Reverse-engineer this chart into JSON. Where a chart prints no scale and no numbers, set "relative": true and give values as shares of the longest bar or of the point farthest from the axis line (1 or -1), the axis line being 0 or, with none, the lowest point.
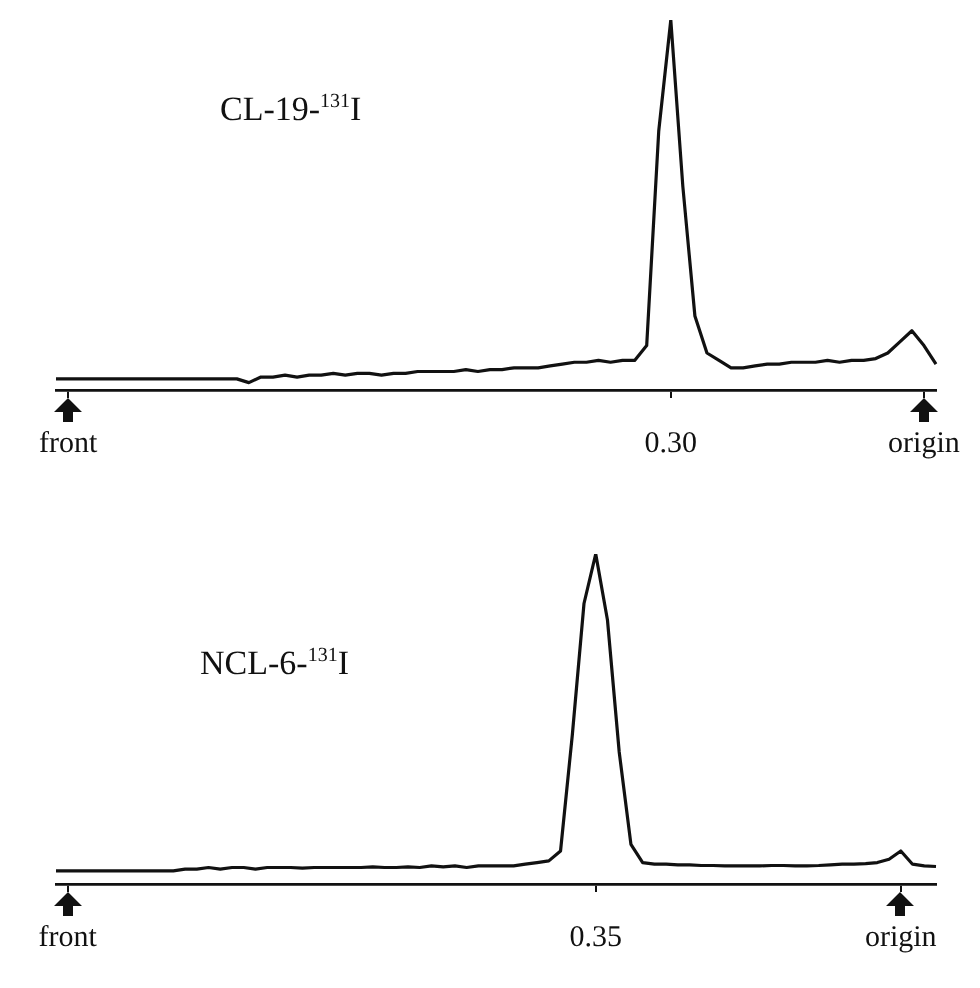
{
  "chart_data": [
    {
      "type": "line",
      "title": "CL-19-$^{131}$I",
      "relative": true,
      "grid": false,
      "legend": false,
      "marker": "none",
      "line_style": "solid",
      "categories": [
        null,
        "front",
        null,
        null,
        null,
        null,
        null,
        null,
        null,
        null,
        null,
        null,
        null,
        null,
        null,
        null,
        null,
        null,
        null,
        null,
        null,
        null,
        null,
        null,
        null,
        null,
        null,
        null,
        null,
        null,
        null,
        null,
        null,
        null,
        null,
        null,
        null,
        null,
        null,
        null,
        null,
        null,
        null,
        null,
        null,
        null,
        null,
        null,
        null,
        null,
        null,
        "0.30",
        null,
        null,
        null,
        null,
        null,
        null,
        null,
        null,
        null,
        null,
        null,
        null,
        null,
        null,
        null,
        null,
        null,
        null,
        null,
        null,
        "origin",
        null
      ],
      "series": [
        {
          "color": "#111111",
          "values": [
            0.03,
            0.03,
            0.03,
            0.03,
            0.03,
            0.03,
            0.03,
            0.03,
            0.03,
            0.03,
            0.03,
            0.03,
            0.03,
            0.03,
            0.03,
            0.03,
            0.02,
            0.035,
            0.035,
            0.04,
            0.035,
            0.04,
            0.04,
            0.045,
            0.04,
            0.045,
            0.045,
            0.04,
            0.045,
            0.045,
            0.05,
            0.05,
            0.05,
            0.05,
            0.055,
            0.05,
            0.055,
            0.055,
            0.06,
            0.06,
            0.06,
            0.065,
            0.07,
            0.075,
            0.075,
            0.08,
            0.075,
            0.08,
            0.08,
            0.12,
            0.7,
            1,
            0.55,
            0.2,
            0.1,
            0.08,
            0.06,
            0.06,
            0.065,
            0.07,
            0.07,
            0.075,
            0.075,
            0.075,
            0.08,
            0.075,
            0.08,
            0.08,
            0.085,
            0.1,
            0.13,
            0.16,
            0.12,
            0.07
          ]
        }
      ]
    },
    {
      "type": "line",
      "title": "NCL-6-$^{131}$I",
      "relative": true,
      "grid": false,
      "legend": false,
      "marker": "none",
      "line_style": "solid",
      "categories": [
        null,
        "front",
        null,
        null,
        null,
        null,
        null,
        null,
        null,
        null,
        null,
        null,
        null,
        null,
        null,
        null,
        null,
        null,
        null,
        null,
        null,
        null,
        null,
        null,
        null,
        null,
        null,
        null,
        null,
        null,
        null,
        null,
        null,
        null,
        null,
        null,
        null,
        null,
        null,
        null,
        null,
        null,
        null,
        null,
        null,
        null,
        "0.35",
        null,
        null,
        null,
        null,
        null,
        null,
        null,
        null,
        null,
        null,
        null,
        null,
        null,
        null,
        null,
        null,
        null,
        null,
        null,
        null,
        null,
        null,
        null,
        null,
        null,
        "origin",
        null,
        null,
        null
      ],
      "series": [
        {
          "color": "#111111",
          "values": [
            0.04,
            0.04,
            0.04,
            0.04,
            0.04,
            0.04,
            0.04,
            0.04,
            0.04,
            0.04,
            0.04,
            0.045,
            0.045,
            0.05,
            0.045,
            0.05,
            0.05,
            0.045,
            0.05,
            0.05,
            0.05,
            0.048,
            0.05,
            0.05,
            0.05,
            0.05,
            0.05,
            0.052,
            0.05,
            0.05,
            0.052,
            0.05,
            0.055,
            0.052,
            0.055,
            0.05,
            0.055,
            0.055,
            0.055,
            0.055,
            0.06,
            0.065,
            0.07,
            0.1,
            0.45,
            0.85,
            1,
            0.8,
            0.4,
            0.12,
            0.065,
            0.06,
            0.06,
            0.058,
            0.058,
            0.056,
            0.056,
            0.055,
            0.055,
            0.055,
            0.055,
            0.056,
            0.056,
            0.055,
            0.055,
            0.056,
            0.058,
            0.06,
            0.06,
            0.062,
            0.065,
            0.075,
            0.1,
            0.06,
            0.055,
            0.053
          ]
        }
      ]
    }
  ]
}
